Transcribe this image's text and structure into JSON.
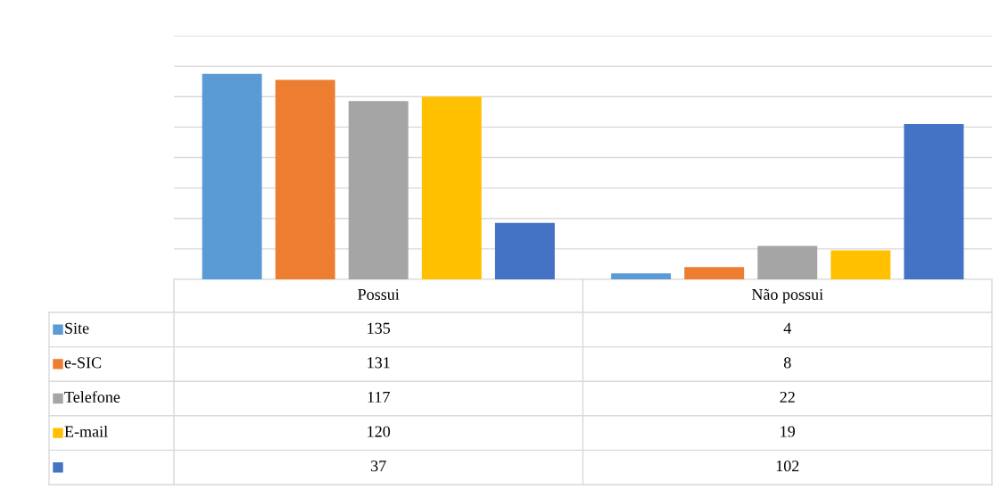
{
  "chart_data": {
    "type": "bar",
    "categories": [
      "Possui",
      "Não possui"
    ],
    "series": [
      {
        "name": "Site",
        "color": "#5b9bd5",
        "values": [
          135,
          4
        ]
      },
      {
        "name": "e-SIC",
        "color": "#ed7d31",
        "values": [
          131,
          8
        ]
      },
      {
        "name": "Telefone",
        "color": "#a5a5a5",
        "values": [
          117,
          22
        ]
      },
      {
        "name": "E-mail",
        "color": "#ffc000",
        "values": [
          120,
          19
        ]
      },
      {
        "color": "#4472c4",
        "values": [
          37,
          102
        ]
      }
    ],
    "ylim": [
      0,
      160
    ],
    "yticks": [
      {
        "value": 0,
        "label": null
      },
      {
        "value": 20,
        "label": null
      },
      {
        "value": 40,
        "label": null
      },
      {
        "value": 60,
        "label": null
      },
      {
        "value": 80,
        "label": null
      },
      {
        "value": 100,
        "label": null
      },
      {
        "value": 120,
        "label": null
      },
      {
        "value": 140,
        "label": null
      },
      {
        "value": 160,
        "label": null
      }
    ],
    "grid": "y",
    "legend": "left",
    "tick_labels": "x",
    "data_labels": true
  }
}
